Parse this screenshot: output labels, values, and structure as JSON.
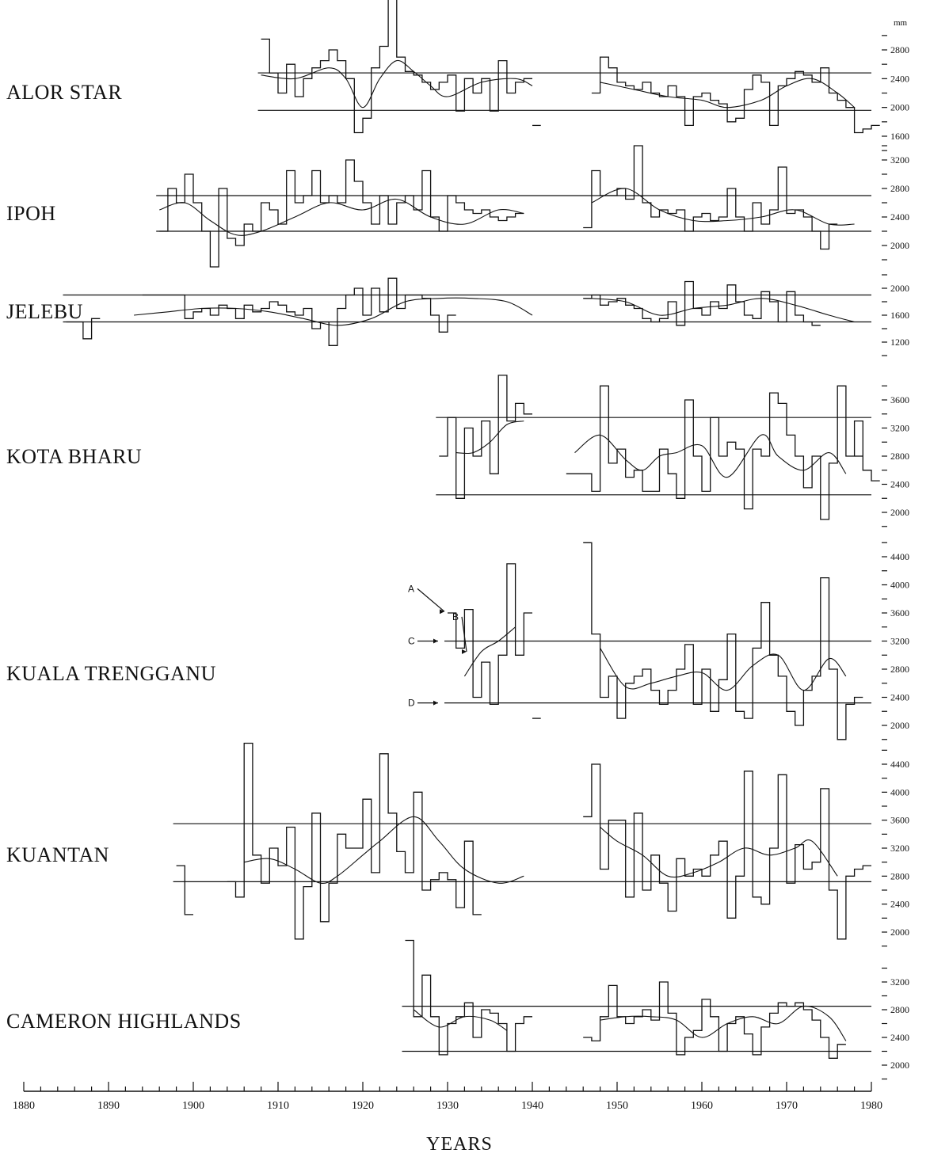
{
  "chart_data": {
    "type": "line",
    "xlabel": "YEARS",
    "unit": "mm",
    "xlim": [
      1880,
      1980
    ],
    "x_ticks": [
      1880,
      1890,
      1900,
      1910,
      1920,
      1930,
      1940,
      1950,
      1960,
      1970,
      1980
    ],
    "series": [
      {
        "name": "ALOR STAR",
        "y_ticks": [
          1600,
          2000,
          2400,
          2800
        ],
        "ref_lines": [
          2480,
          1960
        ],
        "segments": [
          {
            "x0": 1908,
            "values": [
              2950,
              2480,
              2200,
              2600,
              2150,
              2400,
              2550,
              2650,
              2800,
              2650,
              2400,
              1650,
              1850,
              2550,
              2850,
              3500,
              2700,
              2500,
              2450,
              2350,
              2250,
              2350,
              2450,
              1950,
              2400,
              2200,
              2400,
              1950,
              2650,
              2200,
              2350,
              2400
            ]
          },
          {
            "x0": 1940,
            "values": [
              1750
            ]
          },
          {
            "x0": 1947,
            "values": [
              2200,
              2700,
              2550,
              2350,
              2300,
              2250,
              2350,
              2200,
              2150,
              2300,
              2150,
              1750,
              2150,
              2200,
              2100,
              2050,
              1800,
              1850,
              2250,
              2450,
              2350,
              1750,
              2300,
              2400,
              2500,
              2450,
              2350,
              2550,
              2200,
              2100,
              2000,
              1650,
              1700,
              1750
            ]
          }
        ],
        "smooth": [
          {
            "x": [
              1908,
              1912,
              1916,
              1918,
              1920,
              1922,
              1924,
              1926,
              1928,
              1930,
              1934,
              1938,
              1940
            ],
            "y": [
              2450,
              2400,
              2550,
              2400,
              2000,
              2400,
              2650,
              2500,
              2300,
              2150,
              2350,
              2400,
              2300
            ]
          },
          {
            "x": [
              1948,
              1952,
              1956,
              1960,
              1963,
              1967,
              1970,
              1973,
              1976,
              1978
            ],
            "y": [
              2350,
              2250,
              2150,
              2100,
              2000,
              2100,
              2300,
              2400,
              2200,
              2000
            ]
          }
        ]
      },
      {
        "name": "IPOH",
        "y_ticks": [
          2000,
          2400,
          2800,
          3200
        ],
        "ref_lines": [
          2700,
          2200
        ],
        "segments": [
          {
            "x0": 1880,
            "values": []
          },
          {
            "x0": 1896,
            "values": [
              2200,
              2800,
              2600,
              3000,
              2600,
              2200,
              1700,
              2800,
              2100,
              2000,
              2300,
              2200,
              2600,
              2500,
              2300,
              3050,
              2600,
              2700,
              3050,
              2600,
              2700,
              2600,
              3200,
              2900,
              2600,
              2300,
              2700,
              2300,
              2600,
              2700,
              2500,
              3050,
              2400,
              2200,
              2700,
              2600,
              2500,
              2450,
              2500,
              2400,
              2350,
              2400,
              2450
            ]
          },
          {
            "x0": 1946,
            "values": [
              2250,
              3050,
              2700,
              2700,
              2800,
              2650,
              3400,
              2600,
              2400,
              2500,
              2450,
              2500,
              2200,
              2400,
              2450,
              2350,
              2400,
              2800,
              2400,
              2200,
              2600,
              2300,
              2500,
              3100,
              2450,
              2500,
              2400,
              2200,
              1950,
              2300
            ]
          }
        ],
        "smooth": [
          {
            "x": [
              1896,
              1899,
              1902,
              1905,
              1908,
              1912,
              1916,
              1920,
              1924,
              1928,
              1932,
              1936,
              1939
            ],
            "y": [
              2500,
              2600,
              2350,
              2150,
              2200,
              2400,
              2600,
              2500,
              2650,
              2400,
              2300,
              2500,
              2450
            ]
          },
          {
            "x": [
              1947,
              1951,
              1955,
              1959,
              1963,
              1967,
              1971,
              1975,
              1978
            ],
            "y": [
              2600,
              2800,
              2500,
              2350,
              2350,
              2400,
              2500,
              2300,
              2300
            ]
          }
        ]
      },
      {
        "name": "JELEBU",
        "y_ticks": [
          1200,
          1600,
          2000
        ],
        "ref_lines": [
          1900,
          1500
        ],
        "segments": [
          {
            "x0": 1885,
            "values": [
              1500,
              1500,
              1250,
              1550
            ]
          },
          {
            "x0": 1894,
            "values": [
              1900,
              1900,
              1900,
              1900,
              1900,
              1550,
              1650,
              1700,
              1600,
              1750,
              1700,
              1550,
              1750,
              1650,
              1700,
              1800,
              1750,
              1650,
              1600,
              1700,
              1400,
              1500,
              1150,
              1700,
              1900,
              2000,
              1600,
              2000,
              1650,
              2150,
              1700,
              1900,
              1900,
              1850,
              1600,
              1350,
              1600
            ]
          },
          {
            "x0": 1941,
            "values": []
          },
          {
            "x0": 1946,
            "values": [
              1850,
              1900,
              1750,
              1800,
              1850,
              1750,
              1700,
              1550,
              1500,
              1550,
              1800,
              1450,
              2100,
              1700,
              1600,
              1800,
              1700,
              2050,
              1800,
              1600,
              1550,
              1950,
              1800,
              1500,
              1950,
              1600,
              1500,
              1450
            ]
          }
        ],
        "smooth": [
          {
            "x": [
              1893,
              1897,
              1901,
              1905,
              1909,
              1913,
              1917,
              1921,
              1925,
              1929,
              1933,
              1937,
              1940
            ],
            "y": [
              1600,
              1650,
              1700,
              1700,
              1650,
              1550,
              1450,
              1550,
              1800,
              1850,
              1850,
              1800,
              1600
            ]
          },
          {
            "x": [
              1947,
              1951,
              1955,
              1959,
              1963,
              1967,
              1971,
              1975,
              1978
            ],
            "y": [
              1850,
              1800,
              1600,
              1700,
              1750,
              1850,
              1750,
              1600,
              1500
            ]
          }
        ]
      },
      {
        "name": "KOTA BHARU",
        "y_ticks": [
          2000,
          2400,
          2800,
          3200,
          3600
        ],
        "ref_lines": [
          3350,
          2250
        ],
        "segments": [
          {
            "x0": 1929,
            "values": [
              2800,
              3350,
              2200,
              3200,
              2800,
              3300,
              2550,
              3950,
              3300,
              3550,
              3400
            ]
          },
          {
            "x0": 1944,
            "values": [
              2550,
              2550,
              2550,
              2300,
              3800,
              2700,
              2900,
              2500,
              2600,
              2300,
              2300,
              2900,
              2550,
              2200,
              3600,
              2800,
              2300,
              3350,
              2800,
              3000,
              2900,
              2050,
              2900,
              2800,
              3700,
              3550,
              3100,
              2800,
              2350,
              2800,
              1900,
              2700,
              3800,
              2800,
              3300,
              2600,
              2450
            ]
          },
          {
            "x0": 1978,
            "values": [
              2800
            ]
          }
        ],
        "smooth": [
          {
            "x": [
              1931,
              1933,
              1935,
              1937,
              1939
            ],
            "y": [
              2850,
              2850,
              3000,
              3250,
              3300
            ]
          },
          {
            "x": [
              1945,
              1948,
              1951,
              1953,
              1955,
              1957,
              1960,
              1963,
              1967,
              1969,
              1972,
              1975,
              1977
            ],
            "y": [
              2850,
              3100,
              2750,
              2600,
              2800,
              2850,
              2950,
              2500,
              3100,
              2800,
              2600,
              2850,
              2550
            ]
          }
        ]
      },
      {
        "name": "KUALA TRENGGANU",
        "y_ticks": [
          2000,
          2400,
          2800,
          3200,
          3600,
          4000,
          4400
        ],
        "ref_lines": [
          3200,
          2320
        ],
        "annotations": [
          "A",
          "B",
          "C",
          "D"
        ],
        "segments": [
          {
            "x0": 1930,
            "values": [
              3600,
              3100,
              3650,
              2400,
              2900,
              2300,
              3000,
              4300,
              3000,
              3600
            ]
          },
          {
            "x0": 1940,
            "values": [
              2100
            ]
          },
          {
            "x0": 1946,
            "values": [
              4600,
              3300,
              2400,
              2700,
              2100,
              2600,
              2700,
              2800,
              2500,
              2300,
              2500,
              2800,
              3150,
              2300,
              2800,
              2200,
              2650,
              3300,
              2200,
              2100,
              3100,
              3750,
              3000,
              2700,
              2200,
              2000,
              2500,
              2700,
              4100,
              2800,
              1800,
              2300,
              2400
            ]
          }
        ],
        "smooth": [
          {
            "x": [
              1932,
              1934,
              1936,
              1938
            ],
            "y": [
              2700,
              3050,
              3200,
              3400
            ]
          },
          {
            "x": [
              1948,
              1951,
              1954,
              1957,
              1960,
              1963,
              1966,
              1969,
              1972,
              1975,
              1977
            ],
            "y": [
              3100,
              2550,
              2600,
              2700,
              2750,
              2500,
              2850,
              3000,
              2500,
              2950,
              2700
            ]
          }
        ]
      },
      {
        "name": "KUANTAN",
        "y_ticks": [
          2000,
          2400,
          2800,
          3200,
          3600,
          4000,
          4400
        ],
        "ref_lines": [
          3550,
          2720
        ],
        "segments": [
          {
            "x0": 1898,
            "values": [
              2950,
              2250
            ]
          },
          {
            "x0": 1904,
            "values": [
              2720,
              2500,
              4700,
              3100,
              2700,
              3200,
              2950,
              3500,
              1900,
              2650,
              3700,
              2150,
              2700,
              3400,
              3200,
              3200,
              3900,
              2850,
              4550,
              3700,
              3150,
              2850,
              4000,
              2600,
              2750,
              2850,
              2750,
              2350,
              3300,
              2250
            ]
          },
          {
            "x0": 1946,
            "values": [
              3650,
              4400,
              2900,
              3600,
              3600,
              2500,
              3700,
              2600,
              3100,
              2700,
              2300,
              3050,
              2800,
              2900,
              2800,
              3100,
              3300,
              2200,
              2800,
              4300,
              2500,
              2400,
              3200,
              4250,
              2700,
              3250,
              2900,
              3000,
              4050,
              2600,
              1900,
              2800,
              2900,
              2950
            ]
          }
        ],
        "smooth": [
          {
            "x": [
              1906,
              1909,
              1912,
              1915,
              1917,
              1920,
              1922,
              1926,
              1929,
              1932,
              1936,
              1939
            ],
            "y": [
              3000,
              3050,
              2900,
              2700,
              2800,
              3100,
              3300,
              3650,
              3300,
              2900,
              2700,
              2800
            ]
          },
          {
            "x": [
              1948,
              1950,
              1953,
              1956,
              1959,
              1962,
              1965,
              1968,
              1971,
              1973,
              1976
            ],
            "y": [
              3500,
              3300,
              3100,
              2800,
              2850,
              3000,
              3200,
              3100,
              3200,
              3300,
              2800
            ]
          }
        ]
      },
      {
        "name": "CAMERON HIGHLANDS",
        "y_ticks": [
          2000,
          2400,
          2800,
          3200
        ],
        "ref_lines": [
          2850,
          2200
        ],
        "segments": [
          {
            "x0": 1925,
            "values": [
              3800,
              2700,
              3300,
              2700,
              2150,
              2600,
              2700,
              2900,
              2400,
              2800,
              2750,
              2600,
              2200,
              2600,
              2700
            ]
          },
          {
            "x0": 1946,
            "values": [
              2400,
              2350,
              2700,
              3150,
              2700,
              2600,
              2700,
              2800,
              2650,
              3200,
              2750,
              2150,
              2400,
              2500,
              2950,
              2700,
              2200,
              2600,
              2700,
              2450,
              2150,
              2550,
              2750,
              2900,
              2850,
              2900,
              2800,
              2650,
              2400,
              2100,
              2300
            ]
          }
        ],
        "smooth": [
          {
            "x": [
              1926,
              1929,
              1932,
              1935,
              1937
            ],
            "y": [
              2800,
              2550,
              2700,
              2650,
              2500
            ]
          },
          {
            "x": [
              1948,
              1951,
              1954,
              1957,
              1960,
              1963,
              1966,
              1969,
              1972,
              1975,
              1977
            ],
            "y": [
              2650,
              2700,
              2700,
              2650,
              2400,
              2600,
              2700,
              2600,
              2850,
              2700,
              2350
            ]
          }
        ]
      }
    ]
  }
}
